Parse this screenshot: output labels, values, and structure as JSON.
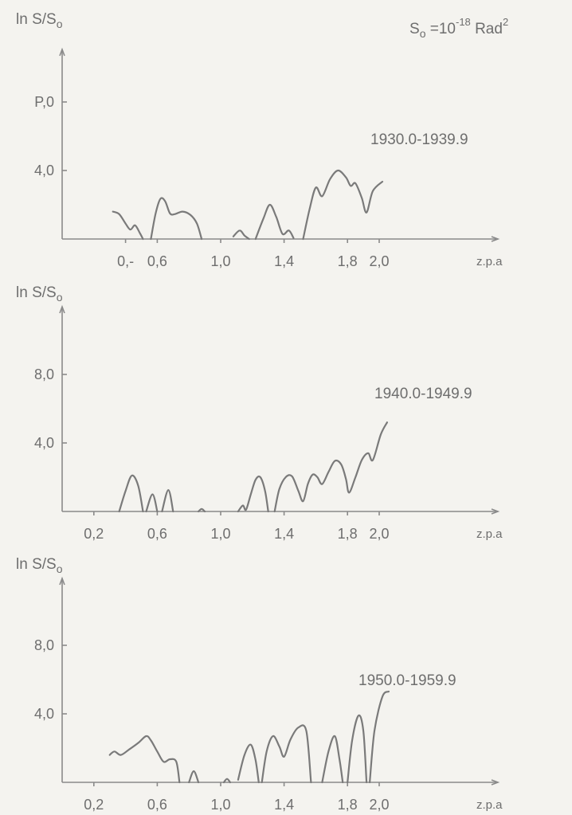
{
  "header": {
    "s0_note": "S",
    "s0_sub": "o",
    "s0_eq": " =10",
    "s0_exp": "-18",
    "s0_unit": " Rad",
    "s0_unit_exp": "2"
  },
  "colors": {
    "curve": "#7a7a7a",
    "axis": "#8a8a8a",
    "text": "#6e6e6e",
    "background": "#f4f3ef"
  },
  "chart_data": [
    {
      "type": "line",
      "title": "1930.0-1939.9",
      "ylabel": "ln S/So",
      "xlabel": "z.p.a",
      "xlim": [
        0,
        2.5
      ],
      "ylim": [
        0,
        11
      ],
      "x_ticks": [
        0.4,
        0.6,
        1.0,
        1.4,
        1.8,
        2.0
      ],
      "x_tick_labels": [
        "0,-",
        "0,6",
        "1,0",
        "1,4",
        "1,8",
        "2,0"
      ],
      "y_ticks": [
        4.0,
        8.0
      ],
      "y_tick_labels": [
        "4,0",
        "P,0"
      ],
      "segments": [
        [
          [
            0.32,
            1.6
          ],
          [
            0.36,
            1.45
          ],
          [
            0.4,
            0.9
          ],
          [
            0.43,
            0.55
          ],
          [
            0.46,
            0.8
          ],
          [
            0.49,
            0.35
          ],
          [
            0.51,
            0.0
          ]
        ],
        [
          [
            0.56,
            0.0
          ],
          [
            0.59,
            1.5
          ],
          [
            0.62,
            2.35
          ],
          [
            0.65,
            2.2
          ],
          [
            0.68,
            1.5
          ],
          [
            0.71,
            1.45
          ],
          [
            0.76,
            1.6
          ],
          [
            0.81,
            1.4
          ],
          [
            0.85,
            0.9
          ],
          [
            0.88,
            0.0
          ]
        ],
        [
          [
            1.08,
            0.15
          ],
          [
            1.12,
            0.5
          ],
          [
            1.15,
            0.2
          ],
          [
            1.18,
            0.0
          ]
        ],
        [
          [
            1.22,
            0.0
          ],
          [
            1.27,
            1.2
          ],
          [
            1.31,
            2.0
          ],
          [
            1.35,
            1.3
          ],
          [
            1.39,
            0.3
          ],
          [
            1.43,
            0.5
          ],
          [
            1.46,
            0.05
          ]
        ],
        [
          [
            1.52,
            0.0
          ],
          [
            1.56,
            1.7
          ],
          [
            1.6,
            3.0
          ],
          [
            1.64,
            2.5
          ],
          [
            1.69,
            3.5
          ],
          [
            1.74,
            4.0
          ],
          [
            1.79,
            3.6
          ],
          [
            1.82,
            3.1
          ],
          [
            1.85,
            3.25
          ],
          [
            1.89,
            2.4
          ],
          [
            1.92,
            1.55
          ],
          [
            1.96,
            2.8
          ],
          [
            2.02,
            3.35
          ]
        ]
      ]
    },
    {
      "type": "line",
      "title": "1940.0-1949.9",
      "ylabel": "ln S/So",
      "xlabel": "z.p.a",
      "xlim": [
        0,
        2.5
      ],
      "ylim": [
        0,
        11
      ],
      "x_ticks": [
        0.2,
        0.6,
        1.0,
        1.4,
        1.8,
        2.0
      ],
      "x_tick_labels": [
        "0,2",
        "0,6",
        "1,0",
        "1,4",
        "1,8",
        "2,0"
      ],
      "y_ticks": [
        4.0,
        8.0
      ],
      "y_tick_labels": [
        "4,0",
        "8,0"
      ],
      "segments": [
        [
          [
            0.36,
            0.0
          ],
          [
            0.4,
            1.2
          ],
          [
            0.44,
            2.1
          ],
          [
            0.48,
            1.5
          ],
          [
            0.51,
            0.0
          ]
        ],
        [
          [
            0.53,
            0.0
          ],
          [
            0.57,
            1.0
          ],
          [
            0.6,
            0.0
          ]
        ],
        [
          [
            0.63,
            0.0
          ],
          [
            0.67,
            1.25
          ],
          [
            0.7,
            0.0
          ]
        ],
        [
          [
            0.86,
            0.0
          ],
          [
            0.88,
            0.15
          ],
          [
            0.9,
            0.0
          ]
        ],
        [
          [
            1.11,
            0.0
          ],
          [
            1.14,
            0.35
          ],
          [
            1.16,
            0.1
          ],
          [
            1.19,
            1.0
          ],
          [
            1.22,
            1.85
          ],
          [
            1.25,
            2.0
          ],
          [
            1.28,
            1.2
          ],
          [
            1.3,
            0.0
          ]
        ],
        [
          [
            1.34,
            0.0
          ],
          [
            1.37,
            1.3
          ],
          [
            1.41,
            2.0
          ],
          [
            1.45,
            2.05
          ],
          [
            1.49,
            1.2
          ],
          [
            1.52,
            0.6
          ],
          [
            1.55,
            1.6
          ],
          [
            1.58,
            2.15
          ],
          [
            1.61,
            2.0
          ],
          [
            1.64,
            1.6
          ],
          [
            1.68,
            2.3
          ],
          [
            1.72,
            2.95
          ],
          [
            1.76,
            2.75
          ],
          [
            1.79,
            1.9
          ],
          [
            1.81,
            1.1
          ],
          [
            1.85,
            2.0
          ],
          [
            1.89,
            3.0
          ],
          [
            1.93,
            3.4
          ],
          [
            1.96,
            3.0
          ],
          [
            2.01,
            4.5
          ],
          [
            2.05,
            5.2
          ]
        ]
      ]
    },
    {
      "type": "line",
      "title": "1950.0-1959.9",
      "ylabel": "ln S/So",
      "xlabel": "z.p.a",
      "xlim": [
        0,
        2.5
      ],
      "ylim": [
        0,
        11
      ],
      "x_ticks": [
        0.2,
        0.6,
        1.0,
        1.4,
        1.8,
        2.0
      ],
      "x_tick_labels": [
        "0,2",
        "0,6",
        "1,0",
        "1,4",
        "1,8",
        "2,0"
      ],
      "y_ticks": [
        4.0,
        8.0
      ],
      "y_tick_labels": [
        "4,0",
        "8,0"
      ],
      "segments": [
        [
          [
            0.3,
            1.6
          ],
          [
            0.33,
            1.8
          ],
          [
            0.37,
            1.6
          ],
          [
            0.42,
            1.9
          ],
          [
            0.48,
            2.3
          ],
          [
            0.53,
            2.7
          ],
          [
            0.56,
            2.45
          ],
          [
            0.6,
            1.8
          ],
          [
            0.64,
            1.2
          ],
          [
            0.68,
            1.35
          ],
          [
            0.72,
            1.2
          ],
          [
            0.74,
            0.0
          ]
        ],
        [
          [
            0.8,
            0.0
          ],
          [
            0.83,
            0.65
          ],
          [
            0.86,
            0.0
          ]
        ],
        [
          [
            1.02,
            0.0
          ],
          [
            1.04,
            0.2
          ],
          [
            1.06,
            0.0
          ]
        ],
        [
          [
            1.11,
            0.15
          ],
          [
            1.15,
            1.6
          ],
          [
            1.19,
            2.2
          ],
          [
            1.22,
            1.3
          ],
          [
            1.24,
            0.0
          ]
        ],
        [
          [
            1.26,
            0.0
          ],
          [
            1.29,
            1.8
          ],
          [
            1.33,
            2.7
          ],
          [
            1.37,
            2.1
          ],
          [
            1.4,
            1.5
          ],
          [
            1.44,
            2.5
          ],
          [
            1.49,
            3.2
          ],
          [
            1.54,
            3.0
          ],
          [
            1.57,
            0.0
          ]
        ],
        [
          [
            1.64,
            0.0
          ],
          [
            1.68,
            1.8
          ],
          [
            1.72,
            2.7
          ],
          [
            1.75,
            1.3
          ],
          [
            1.77,
            0.0
          ]
        ],
        [
          [
            1.8,
            0.0
          ],
          [
            1.83,
            2.5
          ],
          [
            1.87,
            3.9
          ],
          [
            1.9,
            3.0
          ],
          [
            1.92,
            0.0
          ]
        ],
        [
          [
            1.94,
            0.0
          ],
          [
            1.97,
            3.0
          ],
          [
            2.02,
            5.0
          ],
          [
            2.06,
            5.3
          ]
        ]
      ]
    }
  ]
}
